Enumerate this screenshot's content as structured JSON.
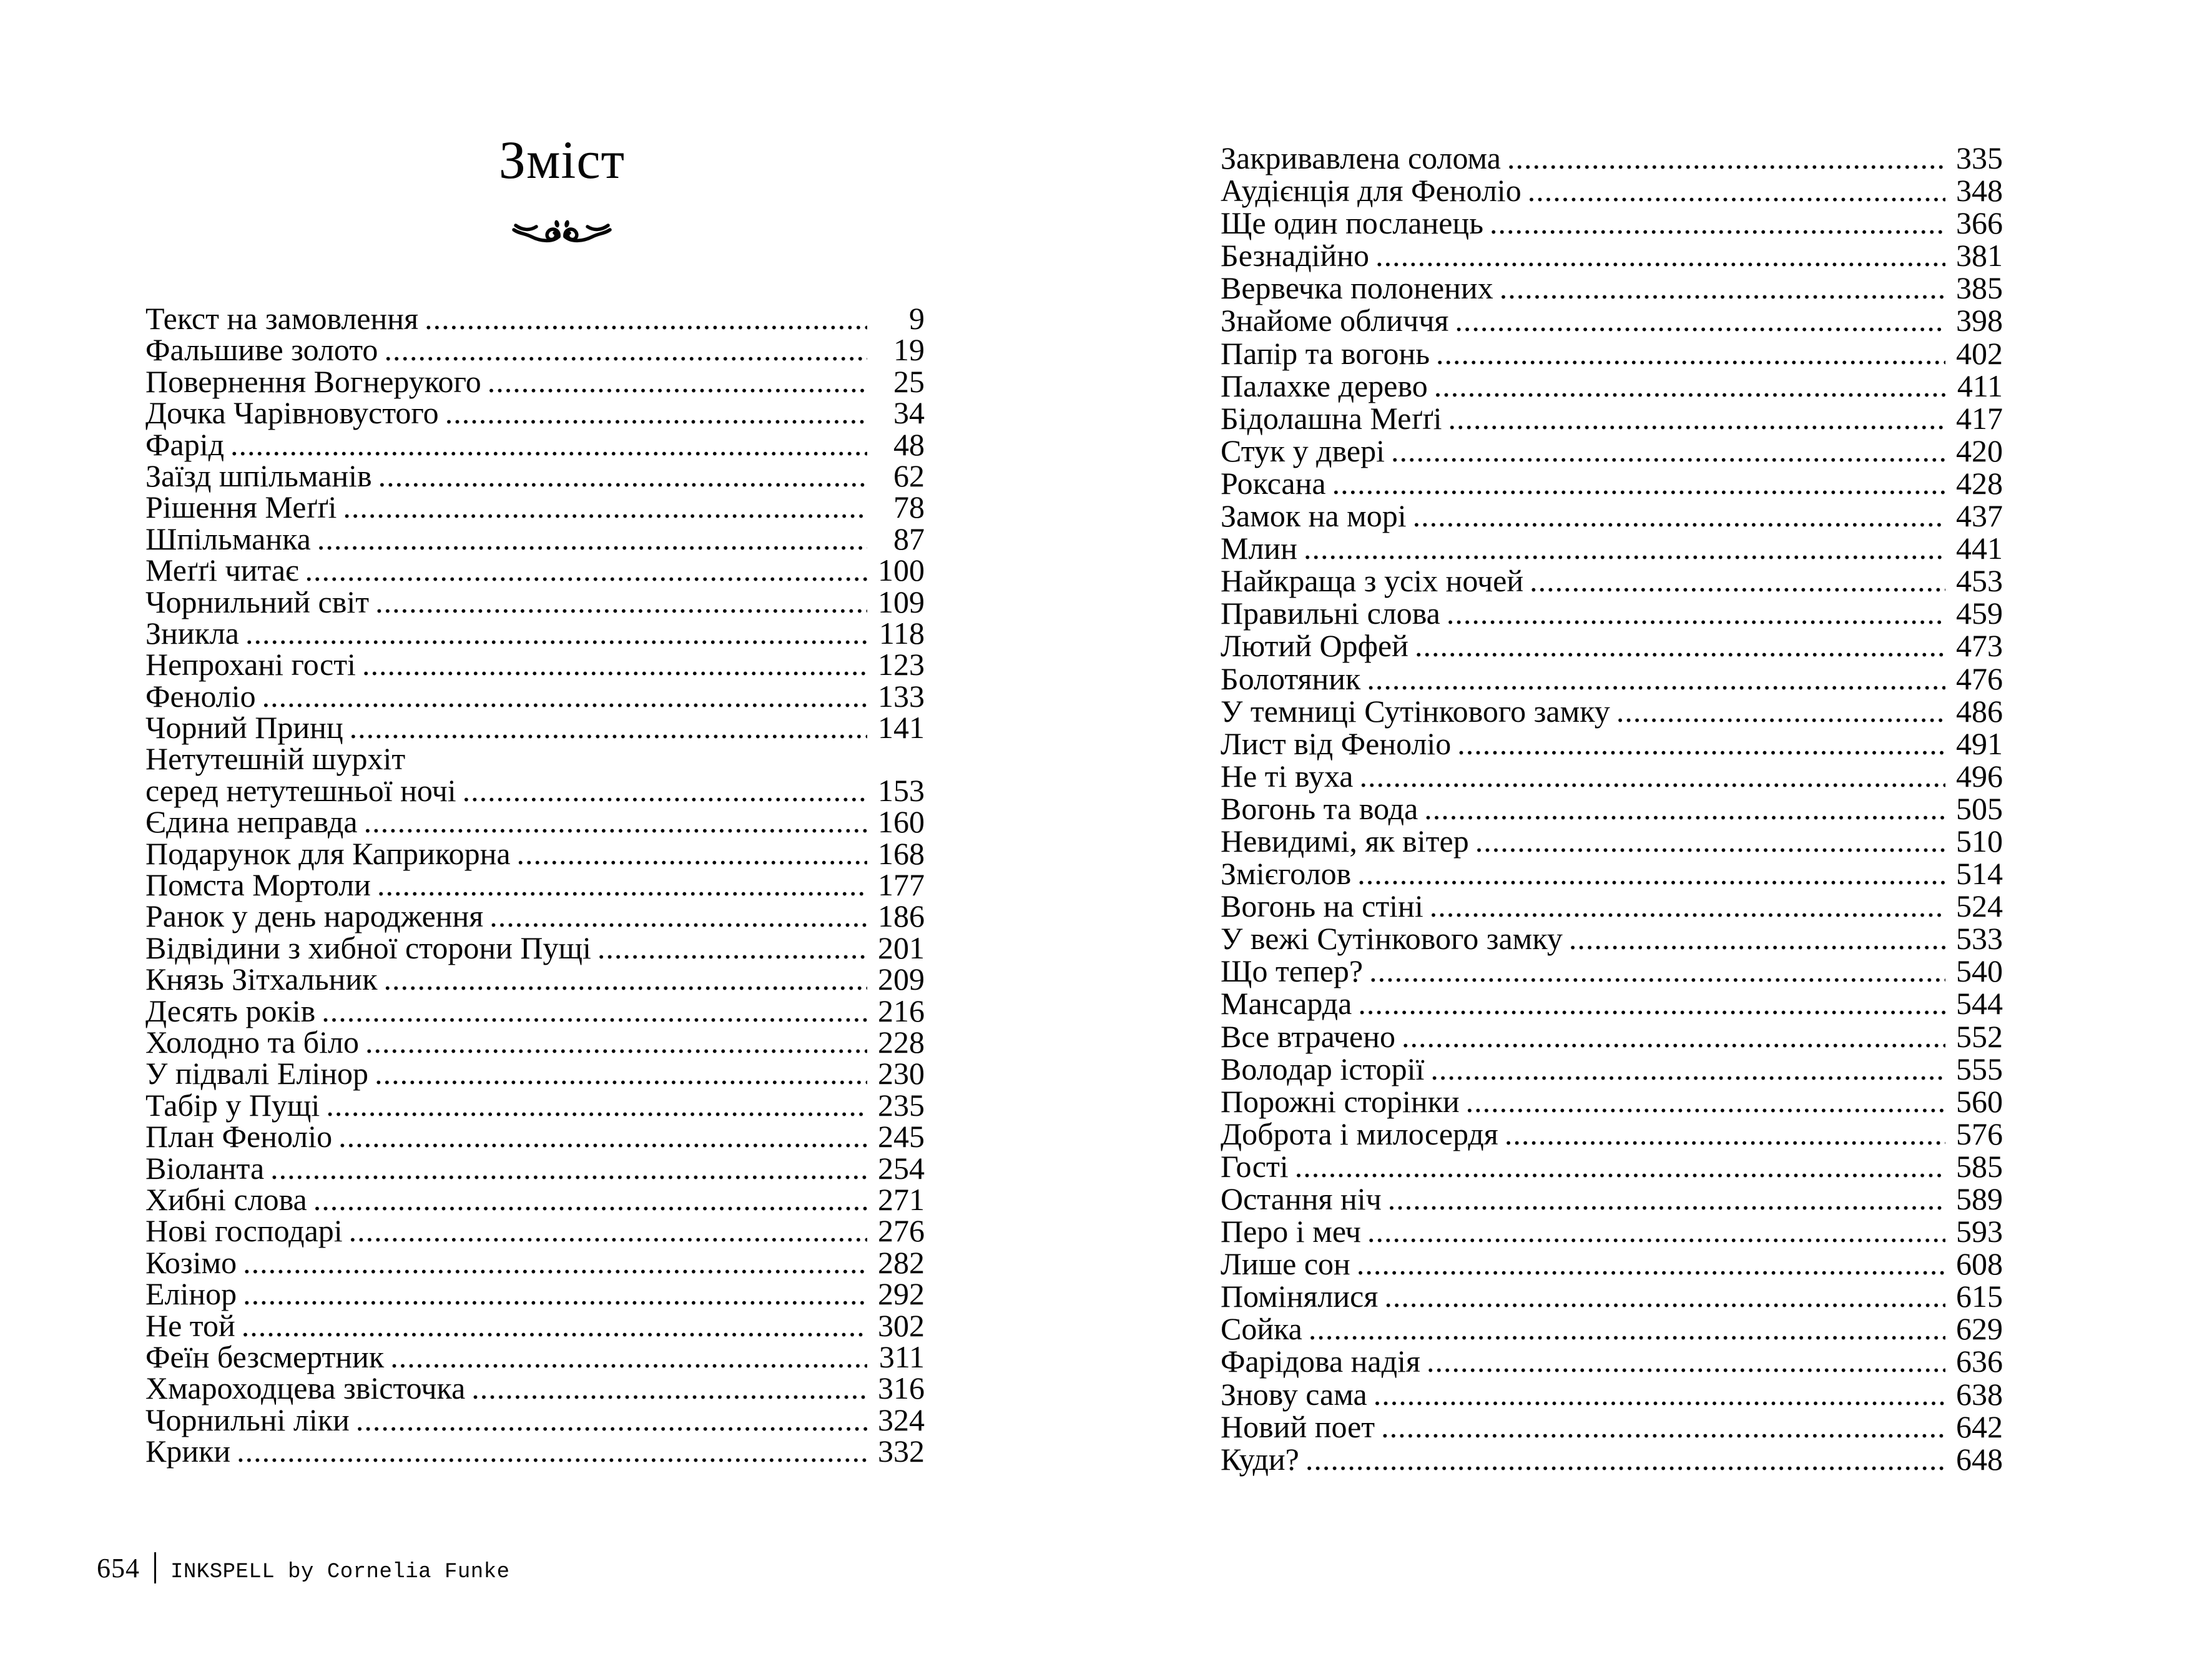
{
  "page_title": "Зміст",
  "ornament": "fleuron-divider",
  "footer": {
    "page_number": "654",
    "credit": "INKSPELL by Cornelia Funke"
  },
  "toc": {
    "left": [
      {
        "t": "Текст на замовлення",
        "p": "9"
      },
      {
        "t": "Фальшиве золото",
        "p": "19"
      },
      {
        "t": "Повернення Вогнерукого",
        "p": "25"
      },
      {
        "t": "Дочка Чарівновустого",
        "p": "34"
      },
      {
        "t": "Фарід",
        "p": "48"
      },
      {
        "t": "Заїзд шпільманів",
        "p": "62"
      },
      {
        "t": "Рішення Меґґі",
        "p": "78"
      },
      {
        "t": "Шпільманка",
        "p": "87"
      },
      {
        "t": "Меґґі читає",
        "p": "100"
      },
      {
        "t": "Чорнильний світ",
        "p": "109"
      },
      {
        "t": "Зникла",
        "p": "118"
      },
      {
        "t": "Непрохані гості",
        "p": "123"
      },
      {
        "t": "Феноліо",
        "p": "133"
      },
      {
        "t": "Чорний Принц",
        "p": "141"
      },
      {
        "pre": "Нетутешній шурхіт",
        "t": "серед нетутешньої ночі",
        "p": "153"
      },
      {
        "t": "Єдина неправда",
        "p": "160"
      },
      {
        "t": "Подарунок для Каприкорна",
        "p": "168"
      },
      {
        "t": "Помста Мортоли",
        "p": "177"
      },
      {
        "t": "Ранок у день народження",
        "p": "186"
      },
      {
        "t": "Відвідини з хибної сторони Пущі",
        "p": "201"
      },
      {
        "t": "Князь Зітхальник",
        "p": "209"
      },
      {
        "t": "Десять років",
        "p": "216"
      },
      {
        "t": "Холодно та біло",
        "p": "228"
      },
      {
        "t": "У підвалі Елінор",
        "p": "230"
      },
      {
        "t": "Табір у Пущі",
        "p": "235"
      },
      {
        "t": "План Феноліо",
        "p": "245"
      },
      {
        "t": "Віоланта",
        "p": "254"
      },
      {
        "t": "Хибні слова",
        "p": "271"
      },
      {
        "t": "Нові господарі",
        "p": "276"
      },
      {
        "t": "Козімо",
        "p": "282"
      },
      {
        "t": "Елінор",
        "p": "292"
      },
      {
        "t": "Не той",
        "p": "302"
      },
      {
        "t": "Феїн безсмертник",
        "p": "311"
      },
      {
        "t": "Хмароходцева звісточка",
        "p": "316"
      },
      {
        "t": "Чорнильні ліки",
        "p": "324"
      },
      {
        "t": "Крики",
        "p": "332"
      }
    ],
    "right": [
      {
        "t": "Закривавлена солома",
        "p": "335"
      },
      {
        "t": "Аудієнція для Феноліо",
        "p": "348"
      },
      {
        "t": "Ще один посланець",
        "p": "366"
      },
      {
        "t": "Безнадійно",
        "p": "381"
      },
      {
        "t": "Вервечка полонених",
        "p": "385"
      },
      {
        "t": "Знайоме обличчя",
        "p": "398"
      },
      {
        "t": "Папір та вогонь",
        "p": "402"
      },
      {
        "t": "Палахке дерево",
        "p": "411"
      },
      {
        "t": "Бідолашна Меґґі",
        "p": "417"
      },
      {
        "t": "Стук у двері",
        "p": "420"
      },
      {
        "t": "Роксана",
        "p": "428"
      },
      {
        "t": "Замок на морі",
        "p": "437"
      },
      {
        "t": "Млин",
        "p": "441"
      },
      {
        "t": "Найкраща з усіх ночей",
        "p": "453"
      },
      {
        "t": "Правильні слова",
        "p": "459"
      },
      {
        "t": "Лютий Орфей",
        "p": "473"
      },
      {
        "t": "Болотяник",
        "p": "476"
      },
      {
        "t": "У темниці Сутінкового замку",
        "p": "486"
      },
      {
        "t": "Лист від Феноліо",
        "p": "491"
      },
      {
        "t": "Не ті вуха",
        "p": "496"
      },
      {
        "t": "Вогонь та вода",
        "p": "505"
      },
      {
        "t": "Невидимі, як вітер",
        "p": "510"
      },
      {
        "t": "Змієголов",
        "p": "514"
      },
      {
        "t": "Вогонь на стіні",
        "p": "524"
      },
      {
        "t": "У вежі Сутінкового замку",
        "p": "533"
      },
      {
        "t": "Що тепер?",
        "p": "540"
      },
      {
        "t": "Мансарда",
        "p": "544"
      },
      {
        "t": "Все втрачено",
        "p": "552"
      },
      {
        "t": "Володар історії",
        "p": "555"
      },
      {
        "t": "Порожні сторінки",
        "p": "560"
      },
      {
        "t": "Доброта і милосердя",
        "p": "576"
      },
      {
        "t": "Гості",
        "p": "585"
      },
      {
        "t": "Остання ніч",
        "p": "589"
      },
      {
        "t": "Перо і меч",
        "p": "593"
      },
      {
        "t": "Лише сон",
        "p": "608"
      },
      {
        "t": "Помінялися",
        "p": "615"
      },
      {
        "t": "Сойка",
        "p": "629"
      },
      {
        "t": "Фарідова надія",
        "p": "636"
      },
      {
        "t": "Знову сама",
        "p": "638"
      },
      {
        "t": "Новий поет",
        "p": "642"
      },
      {
        "t": "Куди?",
        "p": "648"
      }
    ]
  }
}
